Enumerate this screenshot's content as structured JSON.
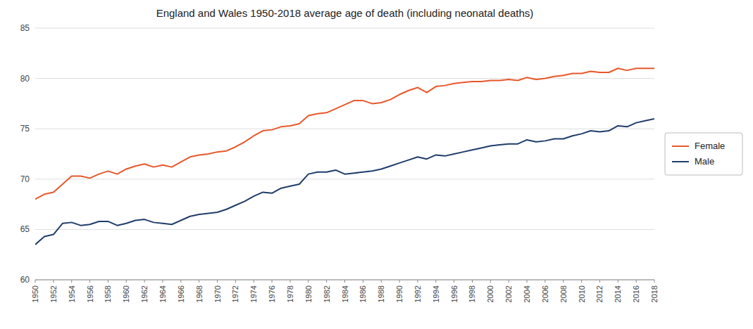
{
  "chart_data": {
    "type": "line",
    "title": "England and Wales 1950-2018 average age of death (including neonatal deaths)",
    "x": [
      1950,
      1951,
      1952,
      1953,
      1954,
      1955,
      1956,
      1957,
      1958,
      1959,
      1960,
      1961,
      1962,
      1963,
      1964,
      1965,
      1966,
      1967,
      1968,
      1969,
      1970,
      1971,
      1972,
      1973,
      1974,
      1975,
      1976,
      1977,
      1978,
      1979,
      1980,
      1981,
      1982,
      1983,
      1984,
      1985,
      1986,
      1987,
      1988,
      1989,
      1990,
      1991,
      1992,
      1993,
      1994,
      1995,
      1996,
      1997,
      1998,
      1999,
      2000,
      2001,
      2002,
      2003,
      2004,
      2005,
      2006,
      2007,
      2008,
      2009,
      2010,
      2011,
      2012,
      2013,
      2014,
      2015,
      2016,
      2017,
      2018
    ],
    "series": [
      {
        "name": "Female",
        "color": "#E8572A",
        "values": [
          68.0,
          68.5,
          68.7,
          69.5,
          70.3,
          70.3,
          70.1,
          70.5,
          70.8,
          70.5,
          71.0,
          71.3,
          71.5,
          71.2,
          71.4,
          71.2,
          71.7,
          72.2,
          72.4,
          72.5,
          72.7,
          72.8,
          73.2,
          73.7,
          74.3,
          74.8,
          74.9,
          75.2,
          75.3,
          75.5,
          76.3,
          76.5,
          76.6,
          77.0,
          77.4,
          77.8,
          77.8,
          77.5,
          77.6,
          77.9,
          78.4,
          78.8,
          79.1,
          78.6,
          79.2,
          79.3,
          79.5,
          79.6,
          79.7,
          79.7,
          79.8,
          79.8,
          79.9,
          79.8,
          80.1,
          79.9,
          80.0,
          80.2,
          80.3,
          80.5,
          80.5,
          80.7,
          80.6,
          80.6,
          81.0,
          80.8,
          81.0,
          81.0,
          81.0
        ]
      },
      {
        "name": "Male",
        "color": "#1F3D6B",
        "values": [
          63.5,
          64.3,
          64.5,
          65.6,
          65.7,
          65.4,
          65.5,
          65.8,
          65.8,
          65.4,
          65.6,
          65.9,
          66.0,
          65.7,
          65.6,
          65.5,
          65.9,
          66.3,
          66.5,
          66.6,
          66.7,
          67.0,
          67.4,
          67.8,
          68.3,
          68.7,
          68.6,
          69.1,
          69.3,
          69.5,
          70.5,
          70.7,
          70.7,
          70.9,
          70.5,
          70.6,
          70.7,
          70.8,
          71.0,
          71.3,
          71.6,
          71.9,
          72.2,
          72.0,
          72.4,
          72.3,
          72.5,
          72.7,
          72.9,
          73.1,
          73.3,
          73.4,
          73.5,
          73.5,
          73.9,
          73.7,
          73.8,
          74.0,
          74.0,
          74.3,
          74.5,
          74.8,
          74.7,
          74.8,
          75.3,
          75.2,
          75.6,
          75.8,
          76.0
        ]
      }
    ],
    "xlim": [
      1950,
      2018
    ],
    "xticks": [
      1950,
      1952,
      1954,
      1956,
      1958,
      1960,
      1962,
      1964,
      1966,
      1968,
      1970,
      1972,
      1974,
      1976,
      1978,
      1980,
      1982,
      1984,
      1986,
      1988,
      1990,
      1992,
      1994,
      1996,
      1998,
      2000,
      2002,
      2004,
      2006,
      2008,
      2010,
      2012,
      2014,
      2016,
      2018
    ],
    "ylim": [
      60,
      85
    ],
    "yticks": [
      60,
      65,
      70,
      75,
      80,
      85
    ],
    "grid": true,
    "legend": "right"
  }
}
